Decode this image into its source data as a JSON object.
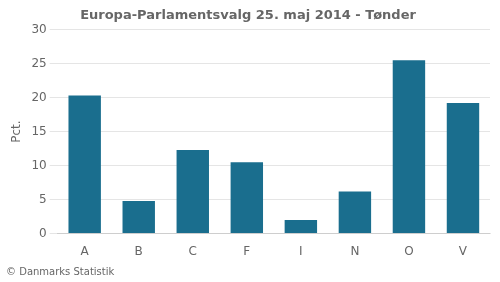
{
  "chart_data": {
    "type": "bar",
    "title": "Europa-Parlamentsvalg 25. maj 2014 - Tønder",
    "ylabel": "Pct.",
    "annotations": [
      "© Danmarks Statistik"
    ],
    "categories": [
      "A",
      "B",
      "C",
      "F",
      "I",
      "N",
      "O",
      "V"
    ],
    "values": [
      20.3,
      4.8,
      12.3,
      10.5,
      2.0,
      6.2,
      25.5,
      19.2
    ],
    "color": "#1a6e8e",
    "ylim": [
      0,
      30
    ],
    "yticks": [
      0,
      5,
      10,
      15,
      20,
      25,
      30
    ],
    "grid": true
  }
}
